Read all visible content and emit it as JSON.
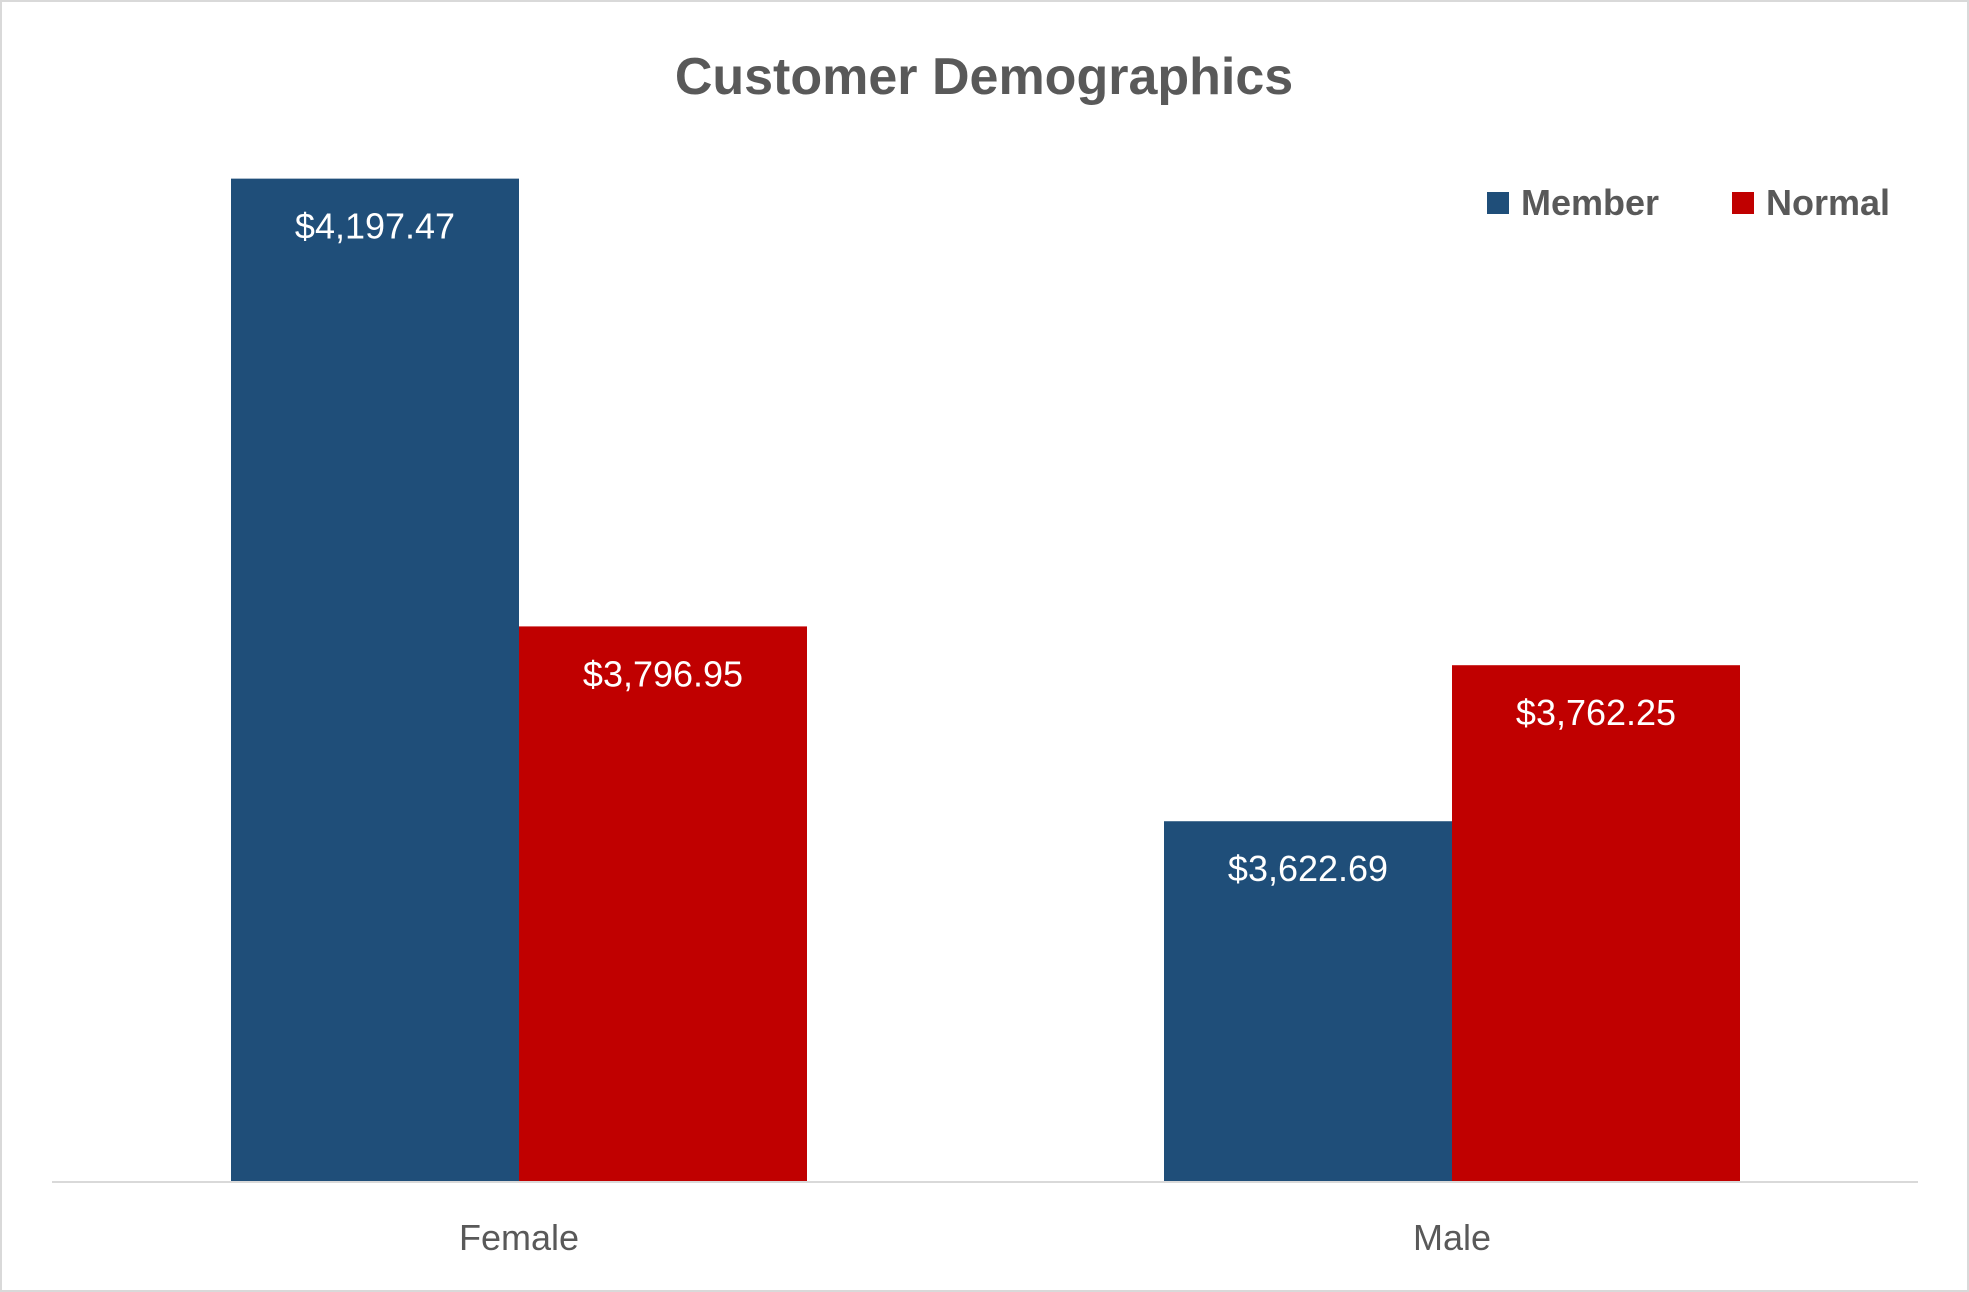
{
  "chart_data": {
    "type": "bar",
    "title": "Customer Demographics",
    "xlabel": "",
    "ylabel": "",
    "categories": [
      "Female",
      "Male"
    ],
    "series": [
      {
        "name": "Member",
        "color": "#1f4e79",
        "values": [
          4197.47,
          3622.69
        ],
        "labels": [
          "$4,197.47",
          "$3,622.69"
        ]
      },
      {
        "name": "Normal",
        "color": "#c00000",
        "values": [
          3796.95,
          3762.25
        ],
        "labels": [
          "$3,796.95",
          "$3,762.25"
        ]
      }
    ],
    "ylim": [
      3300,
      4300
    ],
    "grid": false,
    "legend": "top-right",
    "axis_line_color": "#d9d9d9"
  }
}
